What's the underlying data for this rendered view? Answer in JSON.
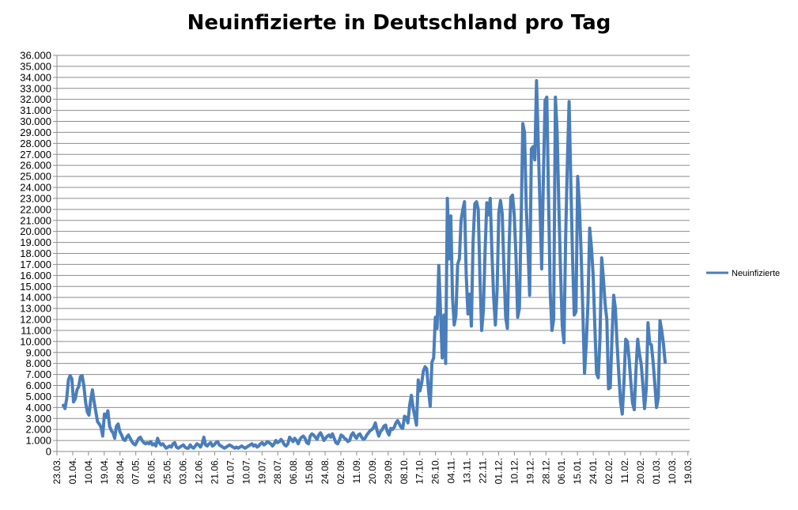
{
  "chart_data": {
    "type": "line",
    "title": "Neuinfizierte in Deutschland pro Tag",
    "xlabel": "",
    "ylabel": "",
    "ylim": [
      0,
      36000
    ],
    "ytick_step": 1000,
    "ytick_labels": [
      "0",
      "1.000",
      "2.000",
      "3.000",
      "4.000",
      "5.000",
      "6.000",
      "7.000",
      "8.000",
      "9.000",
      "10.000",
      "11.000",
      "12.000",
      "13.000",
      "14.000",
      "15.000",
      "16.000",
      "17.000",
      "18.000",
      "19.000",
      "20.000",
      "21.000",
      "22.000",
      "23.000",
      "24.000",
      "25.000",
      "26.000",
      "27.000",
      "28.000",
      "29.000",
      "30.000",
      "31.000",
      "32.000",
      "33.000",
      "34.000",
      "35.000",
      "36.000"
    ],
    "x_tick_labels": [
      "23.03.",
      "01.04.",
      "10.04.",
      "19.04.",
      "28.04.",
      "07.05.",
      "16.05.",
      "25.05.",
      "03.06.",
      "12.06.",
      "21.06.",
      "01.07.",
      "10.07.",
      "19.07.",
      "28.07.",
      "06.08.",
      "15.08.",
      "24.08.",
      "02.09.",
      "11.09.",
      "20.09.",
      "29.09.",
      "08.10.",
      "17.10.",
      "26.10.",
      "04.11.",
      "13.11.",
      "22.11.",
      "01.12.",
      "10.12.",
      "19.12.",
      "28.12.",
      "06.01.",
      "15.01.",
      "24.01.",
      "02.02.",
      "11.02.",
      "20.02.",
      "01.03.",
      "10.03.",
      "19.03."
    ],
    "grid": true,
    "legend_position": "right",
    "series": [
      {
        "name": "Neuinfizierte",
        "color": "#4a7ebb",
        "values": [
          4200,
          3900,
          4800,
          6500,
          6900,
          6600,
          4500,
          4800,
          5600,
          5900,
          6800,
          6900,
          6000,
          4500,
          3600,
          3300,
          4700,
          5600,
          4500,
          3600,
          2700,
          2500,
          2200,
          1400,
          3400,
          3100,
          3700,
          2300,
          1900,
          1700,
          1200,
          2300,
          2500,
          1800,
          1500,
          1100,
          1000,
          1300,
          1500,
          1200,
          900,
          700,
          600,
          900,
          1200,
          1300,
          1000,
          800,
          700,
          800,
          700,
          900,
          600,
          700,
          500,
          1200,
          800,
          600,
          700,
          500,
          300,
          400,
          500,
          400,
          700,
          800,
          400,
          300,
          400,
          500,
          600,
          400,
          300,
          300,
          600,
          400,
          300,
          500,
          700,
          600,
          400,
          700,
          1300,
          600,
          500,
          700,
          800,
          500,
          600,
          800,
          900,
          600,
          500,
          400,
          300,
          400,
          500,
          600,
          500,
          400,
          300,
          400,
          300,
          400,
          500,
          400,
          300,
          400,
          500,
          600,
          700,
          500,
          600,
          400,
          500,
          700,
          800,
          600,
          700,
          900,
          800,
          700,
          500,
          700,
          1000,
          800,
          900,
          1100,
          900,
          600,
          500,
          700,
          1300,
          1100,
          900,
          1200,
          1000,
          700,
          1100,
          1300,
          1400,
          1200,
          800,
          700,
          1400,
          1600,
          1500,
          1300,
          1100,
          1500,
          1700,
          1400,
          1000,
          1200,
          1400,
          1500,
          1300,
          1600,
          1200,
          800,
          700,
          1000,
          1500,
          1400,
          1200,
          1100,
          900,
          1000,
          1500,
          1700,
          1400,
          1200,
          1500,
          1600,
          1300,
          1100,
          1200,
          1500,
          1700,
          1900,
          2000,
          2200,
          2600,
          1900,
          1400,
          1800,
          2000,
          2300,
          2400,
          1800,
          1500,
          2100,
          2000,
          2200,
          2600,
          2800,
          2500,
          2200,
          2100,
          3200,
          3100,
          2600,
          4200,
          5100,
          4000,
          3200,
          2400,
          6500,
          5500,
          6200,
          7300,
          7700,
          7500,
          5600,
          4100,
          8100,
          8500,
          12200,
          11200,
          16900,
          12700,
          8500,
          12400,
          8000,
          23000,
          17500,
          21400,
          14000,
          11500,
          12400,
          17000,
          17500,
          21000,
          22000,
          22700,
          16000,
          12500,
          14300,
          11400,
          19100,
          22500,
          22700,
          22000,
          15800,
          11000,
          12800,
          18200,
          22600,
          21500,
          23000,
          18000,
          14000,
          11500,
          14600,
          21700,
          22800,
          21600,
          16600,
          12200,
          11200,
          18700,
          23100,
          23300,
          21500,
          17800,
          12200,
          13000,
          20700,
          29800,
          29000,
          22300,
          18500,
          14200,
          27500,
          27700,
          26500,
          33700,
          28000,
          22400,
          16600,
          24900,
          31900,
          32200,
          23000,
          14400,
          11000,
          12000,
          32200,
          29100,
          22400,
          16400,
          11400,
          9900,
          19600,
          26300,
          31800,
          24500,
          17600,
          12400,
          12700,
          25000,
          22300,
          18100,
          12700,
          7100,
          9800,
          13500,
          20300,
          18600,
          16100,
          11400,
          7100,
          6700,
          10300,
          17600,
          15700,
          13400,
          12000,
          5700,
          5800,
          10300,
          14200,
          13000,
          9700,
          7000,
          4500,
          3400,
          6300,
          10200,
          10000,
          8400,
          6300,
          4400,
          3800,
          7400,
          10200,
          8900,
          8000,
          6100,
          3900,
          5700,
          11700,
          9800,
          9700,
          8100,
          6100,
          4000,
          4900,
          11900,
          11000,
          9800,
          8100
        ]
      }
    ]
  }
}
